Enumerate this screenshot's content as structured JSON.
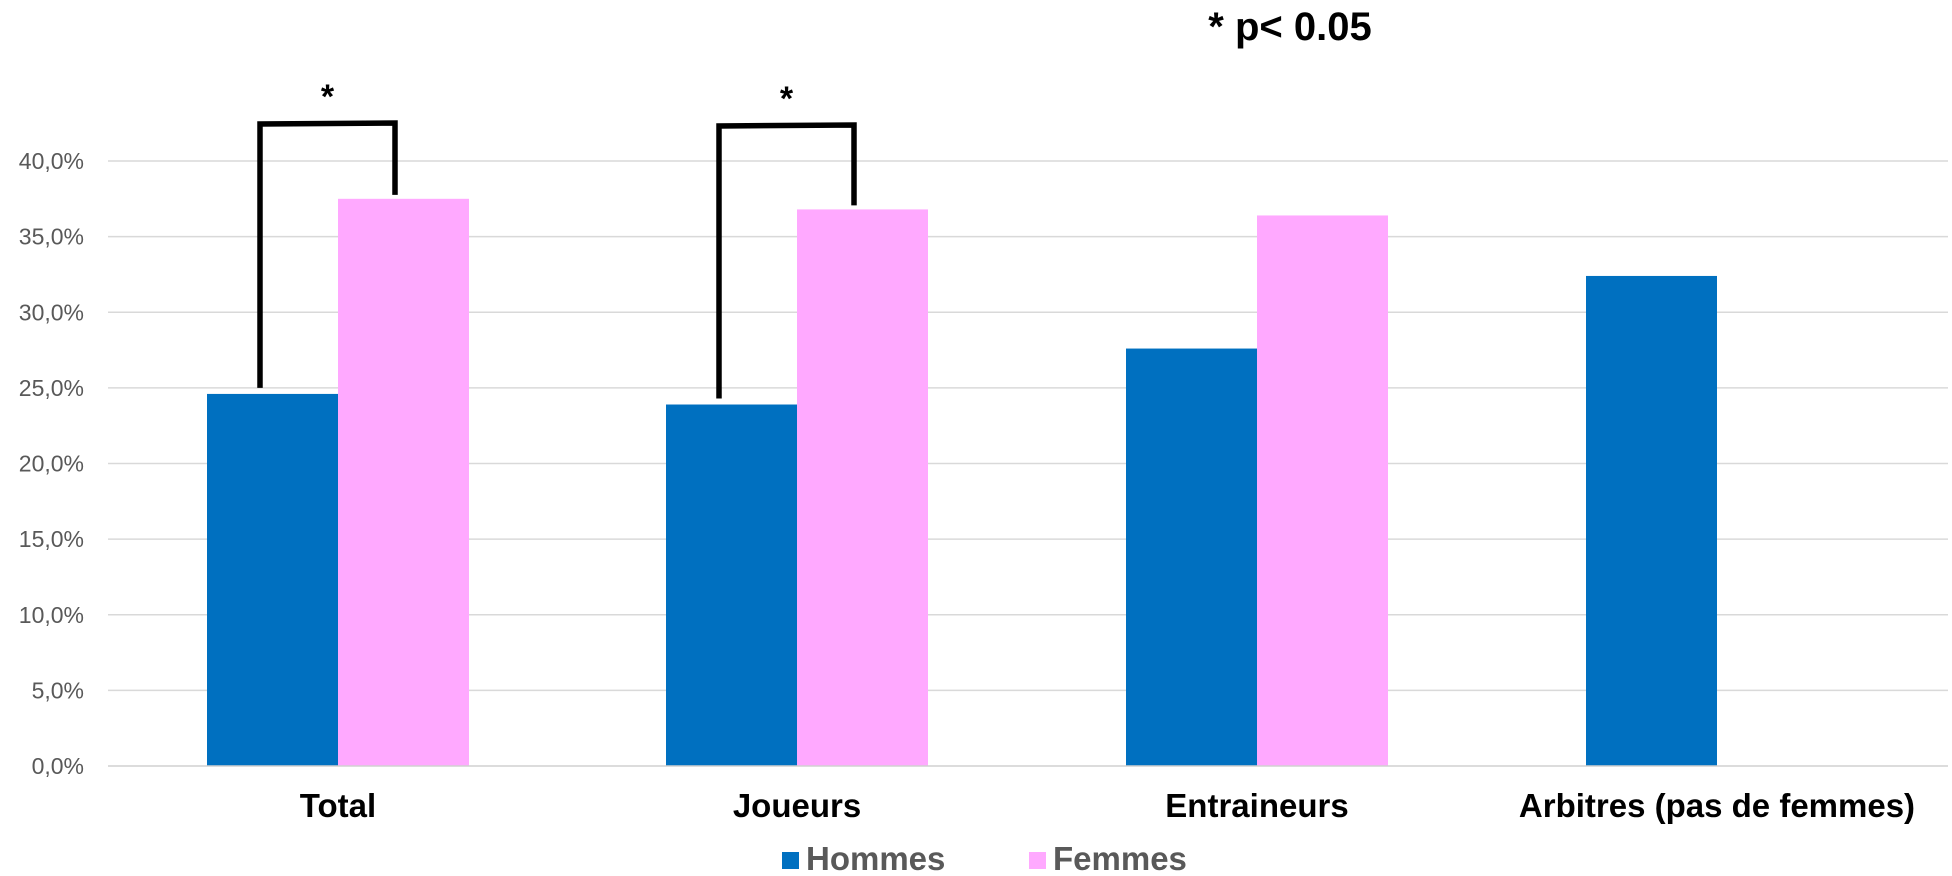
{
  "chart_data": {
    "type": "bar",
    "categories": [
      "Total",
      "Joueurs",
      "Entraineurs",
      "Arbitres (pas de femmes)"
    ],
    "series": [
      {
        "name": "Hommes",
        "color": "#0070C0",
        "values": [
          24.6,
          23.9,
          27.6,
          32.4
        ]
      },
      {
        "name": "Femmes",
        "color": "#FFA9FF",
        "values": [
          37.5,
          36.8,
          36.4,
          null
        ]
      }
    ],
    "ylim": [
      0,
      40
    ],
    "yticks": [
      "0,0%",
      "5,0%",
      "10,0%",
      "15,0%",
      "20,0%",
      "25,0%",
      "30,0%",
      "35,0%",
      "40,0%"
    ],
    "ytick_values": [
      0,
      5,
      10,
      15,
      20,
      25,
      30,
      35,
      40
    ],
    "grid": true,
    "legend_position": "bottom",
    "significance_note": "* p< 0.05",
    "significance_marks": [
      {
        "category": "Total",
        "label": "*"
      },
      {
        "category": "Joueurs",
        "label": "*"
      }
    ]
  }
}
